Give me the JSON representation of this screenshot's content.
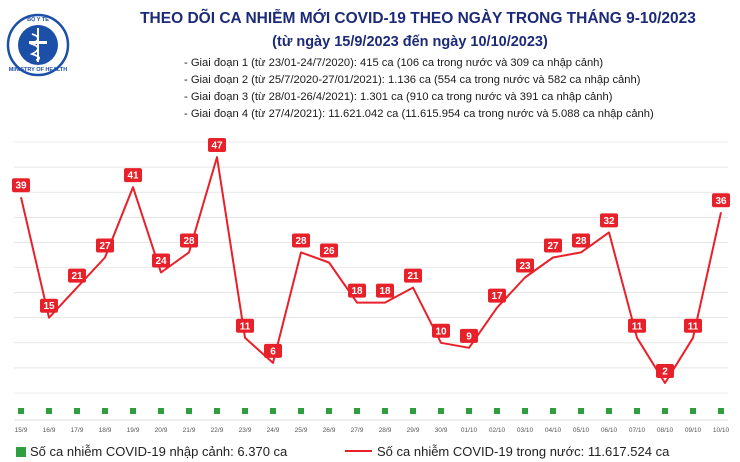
{
  "header": {
    "title": "THEO DÕI CA NHIỄM MỚI COVID-19 THEO NGÀY TRONG THÁNG 9-10/2023",
    "subtitle": "(từ ngày 15/9/2023 đến ngày 10/10/2023)",
    "notes": [
      "- Giai đoạn 1 (từ 23/01-24/7/2020): 415 ca (106 ca trong nước và 309 ca nhập cảnh)",
      "- Giai đoạn 2 (từ 25/7/2020-27/01/2021): 1.136 ca (554 ca trong nước và 582 ca nhập cảnh)",
      "- Giai đoạn 3 (từ 28/01-26/4/2021): 1.301 ca (910 ca trong nước và 391 ca nhập cảnh)",
      "- Giai đoạn 4 (từ 27/4/2021): 11.621.042 ca (11.615.954 ca trong nước và 5.088 ca nhập cảnh)"
    ]
  },
  "logo": {
    "top_text": "BỘ Y TẾ",
    "bottom_text": "MINISTRY OF HEALTH",
    "icon": "caduceus-icon"
  },
  "colors": {
    "line": "#e8202a",
    "import": "#2e9e3e",
    "title": "#1c2a78",
    "grid": "#d8d8d8"
  },
  "chart_data": {
    "type": "line",
    "categories": [
      "15/9",
      "16/9",
      "17/9",
      "18/9",
      "19/9",
      "20/9",
      "21/9",
      "22/9",
      "23/9",
      "24/9",
      "25/9",
      "26/9",
      "27/9",
      "28/9",
      "29/9",
      "30/9",
      "01/10",
      "02/10",
      "03/10",
      "04/10",
      "05/10",
      "06/10",
      "07/10",
      "08/10",
      "09/10",
      "10/10"
    ],
    "series": [
      {
        "name": "Số ca nhiễm COVID-19 trong nước: 11.617.524 ca",
        "values": [
          39,
          15,
          21,
          27,
          41,
          24,
          28,
          47,
          11,
          6,
          28,
          26,
          18,
          18,
          21,
          10,
          9,
          17,
          23,
          27,
          28,
          32,
          11,
          2,
          11,
          36
        ],
        "color": "#e8202a"
      },
      {
        "name": "Số ca nhiễm COVID-19 nhập cảnh: 6.370 ca",
        "values": [
          0,
          0,
          0,
          0,
          0,
          0,
          0,
          0,
          0,
          0,
          0,
          0,
          0,
          0,
          0,
          0,
          0,
          0,
          0,
          0,
          0,
          0,
          0,
          0,
          0,
          0
        ],
        "color": "#2e9e3e"
      }
    ],
    "ylim": [
      0,
      50
    ],
    "grid": true,
    "legend_position": "bottom"
  }
}
